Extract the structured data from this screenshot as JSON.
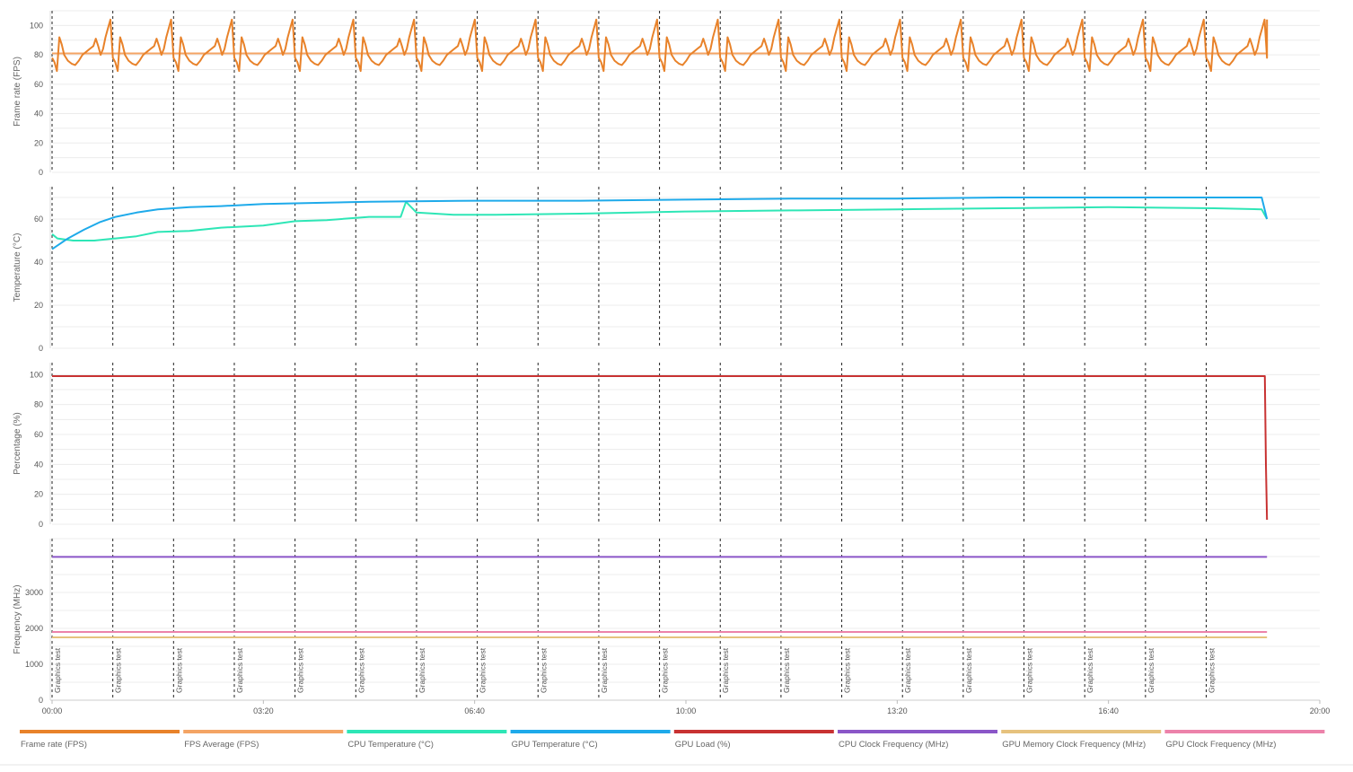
{
  "chart_data": {
    "type": "line",
    "x_axis": {
      "ticks": [
        "00:00",
        "03:20",
        "06:40",
        "10:00",
        "13:20",
        "16:40",
        "20:00"
      ],
      "tick_seconds": [
        0,
        200,
        400,
        600,
        800,
        1000,
        1200
      ],
      "range_seconds": [
        0,
        1200
      ],
      "data_end_seconds": 1150
    },
    "markers": {
      "label": "Graphics test",
      "count": 20,
      "interval_seconds": 57.5
    },
    "panels": [
      {
        "id": "fps",
        "ylabel": "Frame rate (FPS)",
        "ylim": [
          0,
          110
        ],
        "yticks": [
          "0",
          "20",
          "40",
          "60",
          "80",
          "100"
        ],
        "ytick_values": [
          0,
          20,
          40,
          60,
          80,
          100
        ],
        "series": [
          {
            "name": "Frame rate (FPS)",
            "color": "#e8822a",
            "pattern": "repeats every Graphics test segment",
            "segment_profile_fraction": [
              0,
              0.04,
              0.08,
              0.12,
              0.16,
              0.2,
              0.26,
              0.32,
              0.38,
              0.44,
              0.5,
              0.56,
              0.62,
              0.68,
              0.72,
              0.76,
              0.8,
              0.84,
              0.88,
              0.92,
              0.96,
              1
            ],
            "segment_profile_values": [
              78,
              75,
              69,
              92,
              87,
              80,
              76,
              74,
              73,
              76,
              80,
              82,
              84,
              86,
              91,
              86,
              80,
              84,
              92,
              98,
              104,
              78
            ],
            "final_value": 104
          },
          {
            "name": "FPS Average (FPS)",
            "color": "#f4a464",
            "value": 81
          }
        ]
      },
      {
        "id": "temperature",
        "ylabel": "Temperature (°C)",
        "ylim": [
          0,
          75
        ],
        "yticks": [
          "0",
          "20",
          "40",
          "60"
        ],
        "ytick_values": [
          0,
          20,
          40,
          60
        ],
        "series": [
          {
            "name": "CPU Temperature (°C)",
            "color": "#2ee6b6",
            "x": [
              0,
              5,
              20,
              40,
              60,
              80,
              100,
              130,
              160,
              200,
              230,
              260,
              300,
              330,
              335,
              345,
              380,
              420,
              500,
              600,
              700,
              800,
              900,
              1000,
              1100,
              1145,
              1150
            ],
            "y": [
              53,
              51,
              50,
              50,
              51,
              52,
              54,
              54.5,
              56,
              57,
              59,
              59.5,
              61,
              61,
              68,
              63,
              62,
              62,
              62.5,
              63.5,
              64,
              64.5,
              65,
              65.5,
              65,
              64.5,
              60
            ]
          },
          {
            "name": "GPU Temperature (°C)",
            "color": "#1eaaea",
            "x": [
              0,
              15,
              30,
              45,
              60,
              80,
              100,
              130,
              160,
              200,
              250,
              300,
              400,
              500,
              600,
              700,
              800,
              900,
              1000,
              1100,
              1145,
              1150
            ],
            "y": [
              46,
              51,
              55,
              58.5,
              61,
              63,
              64.5,
              65.5,
              66,
              67,
              67.5,
              68,
              68.5,
              68.5,
              69,
              69.5,
              69.5,
              70,
              70,
              70,
              70,
              60
            ]
          }
        ]
      },
      {
        "id": "percentage",
        "ylabel": "Percentage (%)",
        "ylim": [
          0,
          108
        ],
        "yticks": [
          "0",
          "20",
          "40",
          "60",
          "80",
          "100"
        ],
        "ytick_values": [
          0,
          20,
          40,
          60,
          80,
          100
        ],
        "series": [
          {
            "name": "GPU Load (%)",
            "color": "#c83232",
            "x": [
              0,
              1148,
              1149,
              1150
            ],
            "y": [
              99,
              99,
              40,
              3
            ]
          }
        ]
      },
      {
        "id": "frequency",
        "ylabel": "Frequency (MHz)",
        "ylim": [
          0,
          4500
        ],
        "yticks": [
          "0",
          "1000",
          "2000",
          "3000"
        ],
        "ytick_values": [
          0,
          1000,
          2000,
          3000
        ],
        "series": [
          {
            "name": "CPU Clock Frequency (MHz)",
            "color": "#8a56c8",
            "value": 3990
          },
          {
            "name": "GPU Memory Clock Frequency (MHz)",
            "color": "#e6c27e",
            "value": 1750
          },
          {
            "name": "GPU Clock Frequency (MHz)",
            "color": "#ec82aa",
            "value": 1900
          }
        ]
      }
    ],
    "legend": {
      "placement": "bottom",
      "items": [
        {
          "label": "Frame rate (FPS)",
          "color": "#e8822a"
        },
        {
          "label": "FPS Average (FPS)",
          "color": "#f4a464"
        },
        {
          "label": "CPU Temperature (°C)",
          "color": "#2ee6b6"
        },
        {
          "label": "GPU Temperature (°C)",
          "color": "#1eaaea"
        },
        {
          "label": "GPU Load (%)",
          "color": "#c83232"
        },
        {
          "label": "CPU Clock Frequency (MHz)",
          "color": "#8a56c8"
        },
        {
          "label": "GPU Memory Clock Frequency (MHz)",
          "color": "#e6c27e"
        },
        {
          "label": "GPU Clock Frequency (MHz)",
          "color": "#ec82aa"
        }
      ]
    },
    "grid": true
  }
}
